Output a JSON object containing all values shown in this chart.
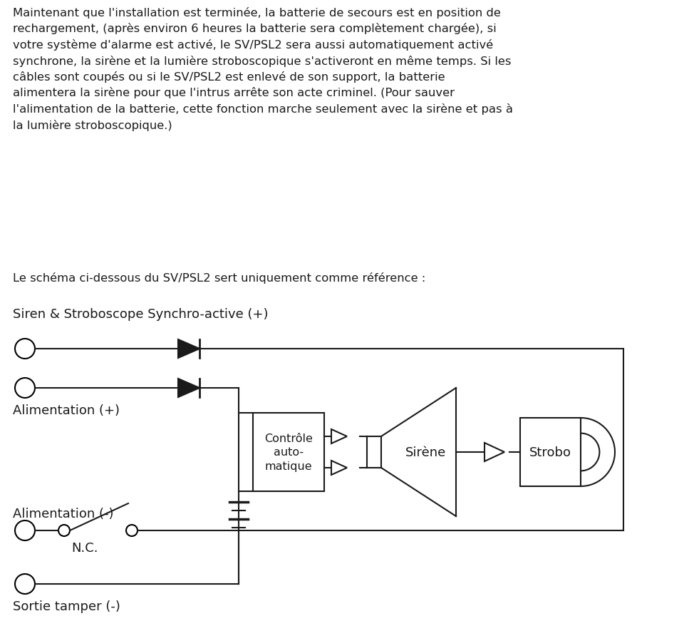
{
  "background_color": "#ffffff",
  "text_color": "#1a1a1a",
  "line_color": "#1a1a1a",
  "paragraph_text": "Maintenant que l'installation est terminée, la batterie de secours est en position de\nrechargement, (après environ 6 heures la batterie sera complètement chargée), si\nvotre système d'alarme est activé, le SV/PSL2 sera aussi automatiquement activé\nsynchrone, la sirène et la lumière stroboscopique s'activeront en même temps. Si les\ncâbles sont coupés ou si le SV/PSL2 est enlevé de son support, la batterie\nalimentera la sirène pour que l'intrus arrête son acte criminel. (Pour sauver\nl'alimentation de la batterie, cette fonction marche seulement avec la sirène et pas à\nla lumière stroboscopique.)",
  "ref_text": "Le schéma ci-dessous du SV/PSL2 sert uniquement comme référence :",
  "label_synchro": "Siren & Stroboscope Synchro-active (+)",
  "label_alim_plus": "Alimentation (+)",
  "label_alim_minus": "Alimentation (-)",
  "label_nc": "N.C.",
  "label_tamper": "Sortie tamper (-)",
  "label_controle": "Contrôle\nauto-\nmatique",
  "label_sirene": "Sirène",
  "label_strobo": "Strobo",
  "font_size_para": 11.8,
  "font_size_label": 13,
  "font_size_diagram": 11.5
}
